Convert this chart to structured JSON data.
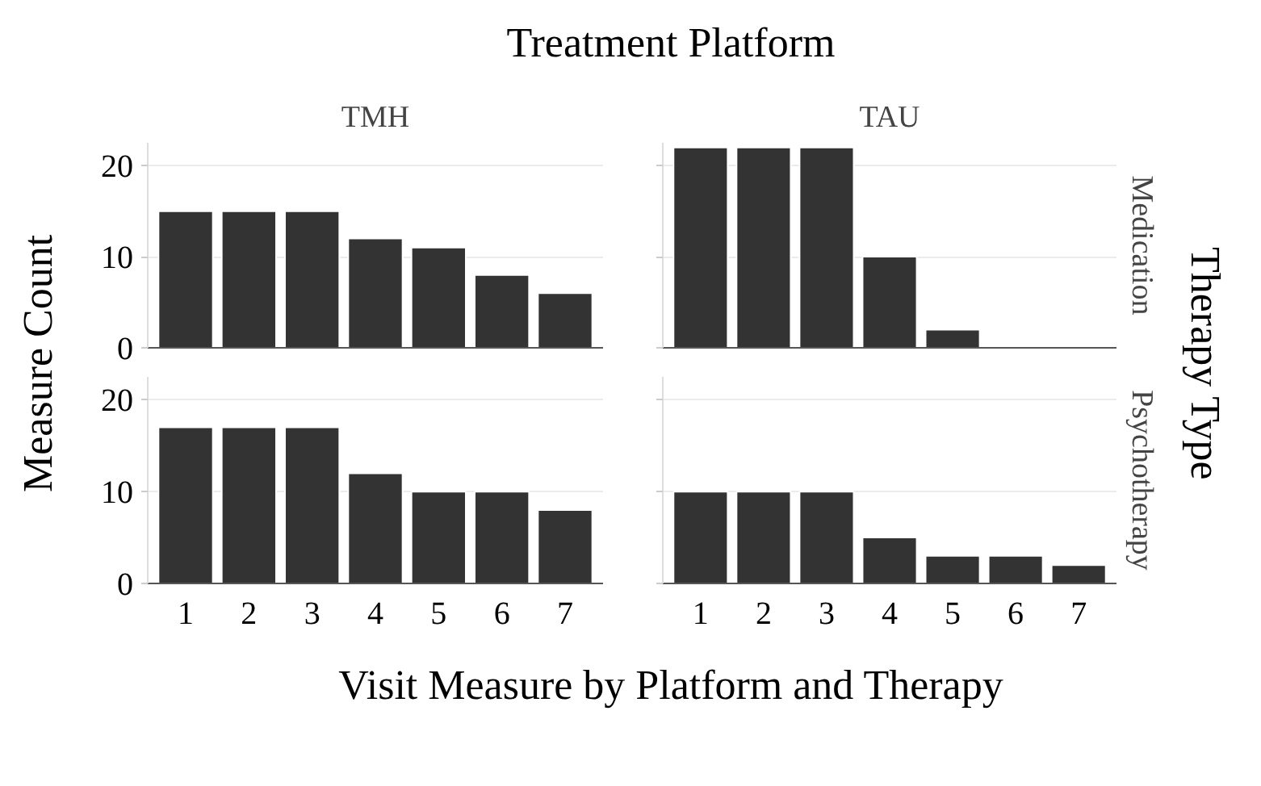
{
  "chart_data": [
    {
      "type": "bar",
      "title": "TMH",
      "ylabel": "Measure Count",
      "annotations": [
        "Treatment Platform",
        "Therapy Type"
      ],
      "categories": [
        "1",
        "2",
        "3",
        "4",
        "5",
        "6",
        "7"
      ],
      "values": [
        15,
        15,
        15,
        12,
        11,
        8,
        6
      ],
      "color": "#333333",
      "ylim": [
        0,
        22.5
      ],
      "yticks": [
        0,
        10,
        20
      ],
      "grid": "y",
      "tick_labels": "y"
    },
    {
      "type": "bar",
      "title": "TAU",
      "y2label": "Medication",
      "categories": [
        "1",
        "2",
        "3",
        "4",
        "5",
        "6",
        "7"
      ],
      "values": [
        22,
        22,
        22,
        10,
        2,
        null,
        null
      ],
      "color": "#333333",
      "ylim": [
        0,
        22.5
      ],
      "yticks": [
        0,
        10,
        20
      ],
      "grid": "y",
      "tick_labels": false
    },
    {
      "type": "bar",
      "xlabel": "Visit Measure by Platform and Therapy",
      "categories": [
        "1",
        "2",
        "3",
        "4",
        "5",
        "6",
        "7"
      ],
      "values": [
        17,
        17,
        17,
        12,
        10,
        10,
        8
      ],
      "color": "#333333",
      "ylim": [
        0,
        22.5
      ],
      "yticks": [
        0,
        10,
        20
      ],
      "grid": "y"
    },
    {
      "type": "bar",
      "y2label": "Psychotherapy",
      "categories": [
        "1",
        "2",
        "3",
        "4",
        "5",
        "6",
        "7"
      ],
      "values": [
        10,
        10,
        10,
        5,
        3,
        3,
        2
      ],
      "color": "#333333",
      "ylim": [
        0,
        22.5
      ],
      "yticks": [
        0,
        10,
        20
      ],
      "grid": "y",
      "tick_labels": "x"
    }
  ]
}
